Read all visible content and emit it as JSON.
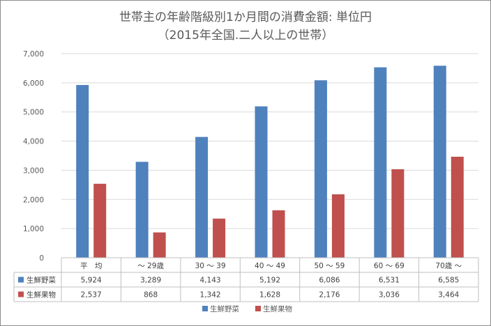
{
  "chart_data": {
    "type": "bar",
    "title": "世帯主の年齢階級別1か月間の消費金額: 単位円",
    "subtitle": "（2015年全国.二人以上の世帯）",
    "categories": [
      "平　均",
      "～ 29歳",
      "30 ～ 39",
      "40 ～ 49",
      "50 ～ 59",
      "60 ～ 69",
      "70歳 ～"
    ],
    "series": [
      {
        "name": "生鮮野菜",
        "color": "#4f81bd",
        "values": [
          5924,
          3289,
          4143,
          5192,
          6086,
          6531,
          6585
        ],
        "labels": [
          "5,924",
          "3,289",
          "4,143",
          "5,192",
          "6,086",
          "6,531",
          "6,585"
        ]
      },
      {
        "name": "生鮮果物",
        "color": "#c0504d",
        "values": [
          2537,
          868,
          1342,
          1628,
          2176,
          3036,
          3464
        ],
        "labels": [
          "2,537",
          "868",
          "1,342",
          "1,628",
          "2,176",
          "3,036",
          "3,464"
        ]
      }
    ],
    "ylim": [
      0,
      7000
    ],
    "yticks": [
      0,
      1000,
      2000,
      3000,
      4000,
      5000,
      6000,
      7000
    ],
    "ytick_labels": [
      "0",
      "1,000",
      "2,000",
      "3,000",
      "4,000",
      "5,000",
      "6,000",
      "7,000"
    ],
    "xlabel": "",
    "ylabel": "",
    "grid": true,
    "data_table": true,
    "legend_position": "bottom"
  }
}
